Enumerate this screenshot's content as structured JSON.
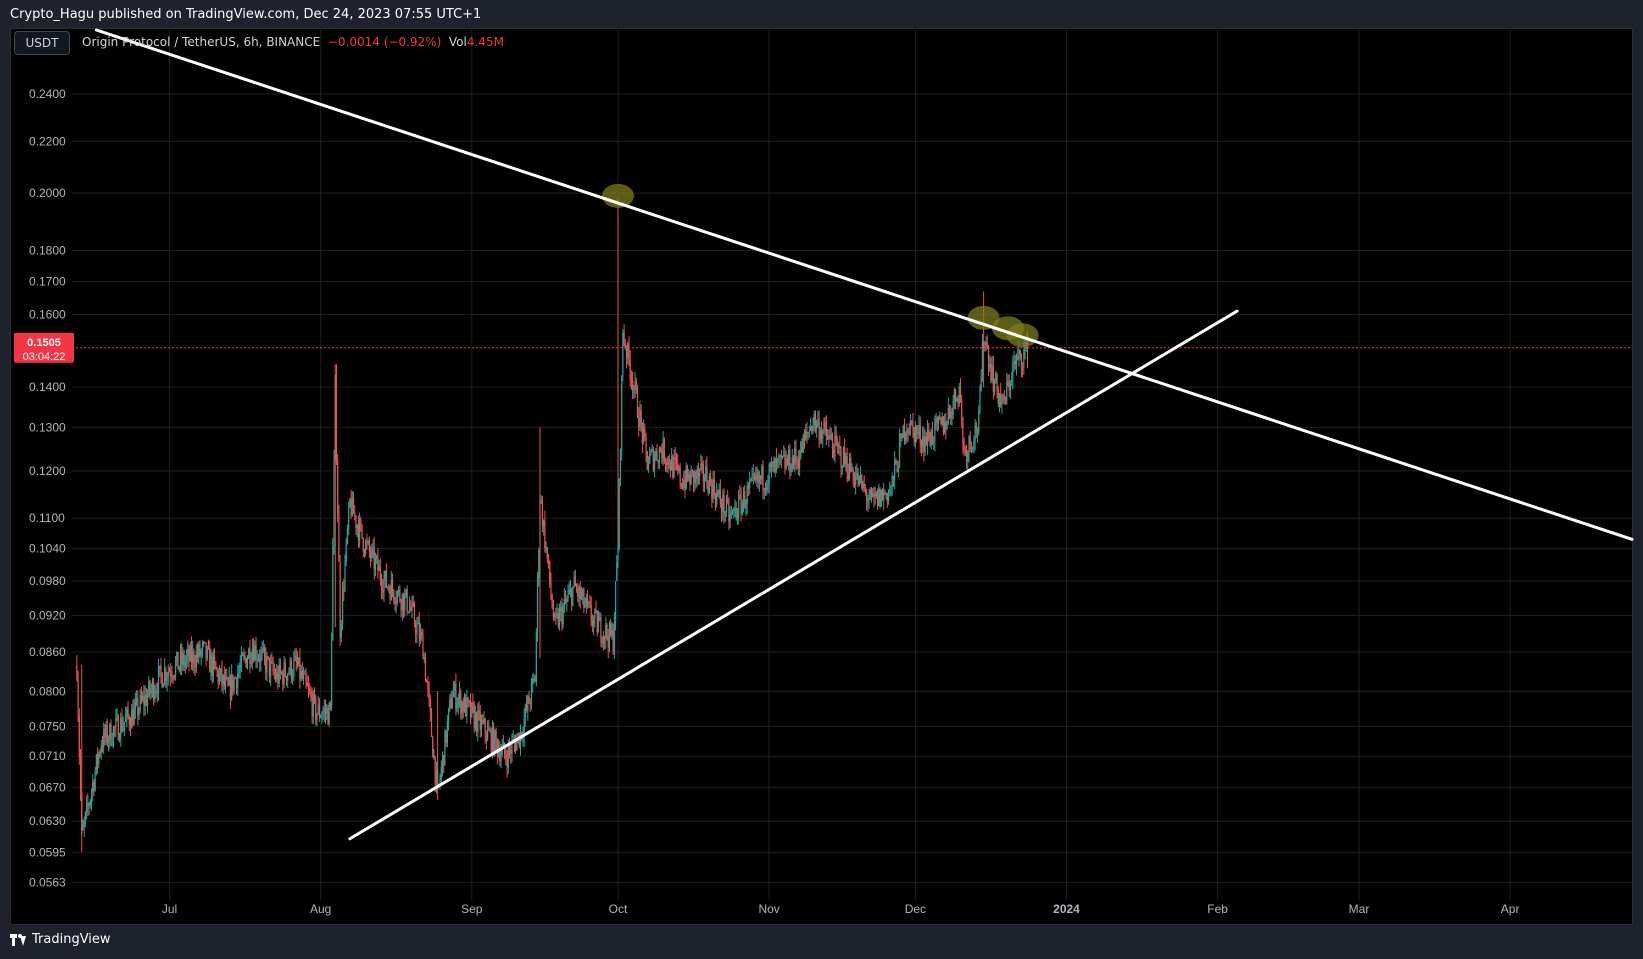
{
  "header": {
    "publisher_text": "Crypto_Hagu published on TradingView.com, Dec 24, 2023 07:55 UTC+1"
  },
  "toolbar": {
    "currency_label": "USDT"
  },
  "legend": {
    "symbol_text": "Origin Protocol / TetherUS, 6h, BINANCE",
    "change_text": "−0.0014 (−0.92%)",
    "volume_label": "Vol",
    "volume_value": "4.45M"
  },
  "price_tag": {
    "price": "0.1505",
    "countdown": "03:04:22"
  },
  "footer": {
    "brand": "TradingView"
  },
  "colors": {
    "up": "#26a69a",
    "down": "#ef5350",
    "background": "#000000",
    "trendline": "#ffffff",
    "price_tag": "#f23645",
    "highlight": "#7d7a1c"
  },
  "chart_data": {
    "type": "candlestick",
    "title": "Origin Protocol / TetherUS, 6h, BINANCE",
    "y_scale": "log",
    "ylim": [
      0.0545,
      0.27
    ],
    "y_ticks": [
      "0.2400",
      "0.2200",
      "0.2000",
      "0.1800",
      "0.1700",
      "0.1600",
      "0.1400",
      "0.1300",
      "0.1200",
      "0.1100",
      "0.1040",
      "0.0980",
      "0.0920",
      "0.0860",
      "0.0800",
      "0.0750",
      "0.0710",
      "0.0670",
      "0.0630",
      "0.0595",
      "0.0563"
    ],
    "x_range": [
      "2023-06-11",
      "2024-04-26"
    ],
    "x_ticks": [
      {
        "label": "Jul",
        "date": "2023-07-01"
      },
      {
        "label": "Aug",
        "date": "2023-08-01"
      },
      {
        "label": "Sep",
        "date": "2023-09-01"
      },
      {
        "label": "Oct",
        "date": "2023-10-01"
      },
      {
        "label": "Nov",
        "date": "2023-11-01"
      },
      {
        "label": "Dec",
        "date": "2023-12-01"
      },
      {
        "label": "2024",
        "date": "2024-01-01"
      },
      {
        "label": "Feb",
        "date": "2024-02-01"
      },
      {
        "label": "Mar",
        "date": "2024-03-01"
      },
      {
        "label": "Apr",
        "date": "2024-04-01"
      }
    ],
    "current_price": 0.1505,
    "price_path": [
      {
        "date": "2023-06-12",
        "price": 0.084
      },
      {
        "date": "2023-06-13",
        "price": 0.061
      },
      {
        "date": "2023-06-17",
        "price": 0.073
      },
      {
        "date": "2023-06-24",
        "price": 0.077
      },
      {
        "date": "2023-06-30",
        "price": 0.083
      },
      {
        "date": "2023-07-08",
        "price": 0.086
      },
      {
        "date": "2023-07-13",
        "price": 0.08
      },
      {
        "date": "2023-07-18",
        "price": 0.087
      },
      {
        "date": "2023-07-23",
        "price": 0.082
      },
      {
        "date": "2023-07-27",
        "price": 0.084
      },
      {
        "date": "2023-07-31",
        "price": 0.077
      },
      {
        "date": "2023-08-03",
        "price": 0.077
      },
      {
        "date": "2023-08-04",
        "price": 0.14
      },
      {
        "date": "2023-08-05",
        "price": 0.09
      },
      {
        "date": "2023-08-07",
        "price": 0.113
      },
      {
        "date": "2023-08-10",
        "price": 0.105
      },
      {
        "date": "2023-08-14",
        "price": 0.098
      },
      {
        "date": "2023-08-19",
        "price": 0.094
      },
      {
        "date": "2023-08-22",
        "price": 0.087
      },
      {
        "date": "2023-08-25",
        "price": 0.066
      },
      {
        "date": "2023-08-28",
        "price": 0.08
      },
      {
        "date": "2023-09-03",
        "price": 0.075
      },
      {
        "date": "2023-09-08",
        "price": 0.071
      },
      {
        "date": "2023-09-11",
        "price": 0.074
      },
      {
        "date": "2023-09-14",
        "price": 0.082
      },
      {
        "date": "2023-09-15",
        "price": 0.115
      },
      {
        "date": "2023-09-18",
        "price": 0.09
      },
      {
        "date": "2023-09-22",
        "price": 0.097
      },
      {
        "date": "2023-09-26",
        "price": 0.091
      },
      {
        "date": "2023-09-30",
        "price": 0.088
      },
      {
        "date": "2023-10-01",
        "price": 0.105
      },
      {
        "date": "2023-10-02",
        "price": 0.155
      },
      {
        "date": "2023-10-04",
        "price": 0.142
      },
      {
        "date": "2023-10-07",
        "price": 0.122
      },
      {
        "date": "2023-10-10",
        "price": 0.125
      },
      {
        "date": "2023-10-14",
        "price": 0.118
      },
      {
        "date": "2023-10-19",
        "price": 0.119
      },
      {
        "date": "2023-10-24",
        "price": 0.11
      },
      {
        "date": "2023-10-29",
        "price": 0.117
      },
      {
        "date": "2023-11-03",
        "price": 0.121
      },
      {
        "date": "2023-11-07",
        "price": 0.123
      },
      {
        "date": "2023-11-10",
        "price": 0.132
      },
      {
        "date": "2023-11-14",
        "price": 0.126
      },
      {
        "date": "2023-11-18",
        "price": 0.12
      },
      {
        "date": "2023-11-22",
        "price": 0.113
      },
      {
        "date": "2023-11-26",
        "price": 0.116
      },
      {
        "date": "2023-11-29",
        "price": 0.131
      },
      {
        "date": "2023-12-03",
        "price": 0.127
      },
      {
        "date": "2023-12-07",
        "price": 0.131
      },
      {
        "date": "2023-12-10",
        "price": 0.14
      },
      {
        "date": "2023-12-11",
        "price": 0.124
      },
      {
        "date": "2023-12-14",
        "price": 0.131
      },
      {
        "date": "2023-12-15",
        "price": 0.155
      },
      {
        "date": "2023-12-17",
        "price": 0.142
      },
      {
        "date": "2023-12-19",
        "price": 0.135
      },
      {
        "date": "2023-12-21",
        "price": 0.145
      },
      {
        "date": "2023-12-24",
        "price": 0.1505
      }
    ],
    "annotations": {
      "upper_trendline": [
        {
          "date": "2023-06-16",
          "price": 0.27
        },
        {
          "date": "2024-04-26",
          "price": 0.1058
        }
      ],
      "lower_trendline": [
        {
          "date": "2023-08-07",
          "price": 0.061
        },
        {
          "date": "2024-02-05",
          "price": 0.161
        }
      ],
      "highlights": [
        {
          "date": "2023-10-01",
          "price": 0.199
        },
        {
          "date": "2023-12-15",
          "price": 0.159
        },
        {
          "date": "2023-12-20",
          "price": 0.156
        },
        {
          "date": "2023-12-23",
          "price": 0.154
        }
      ]
    }
  }
}
